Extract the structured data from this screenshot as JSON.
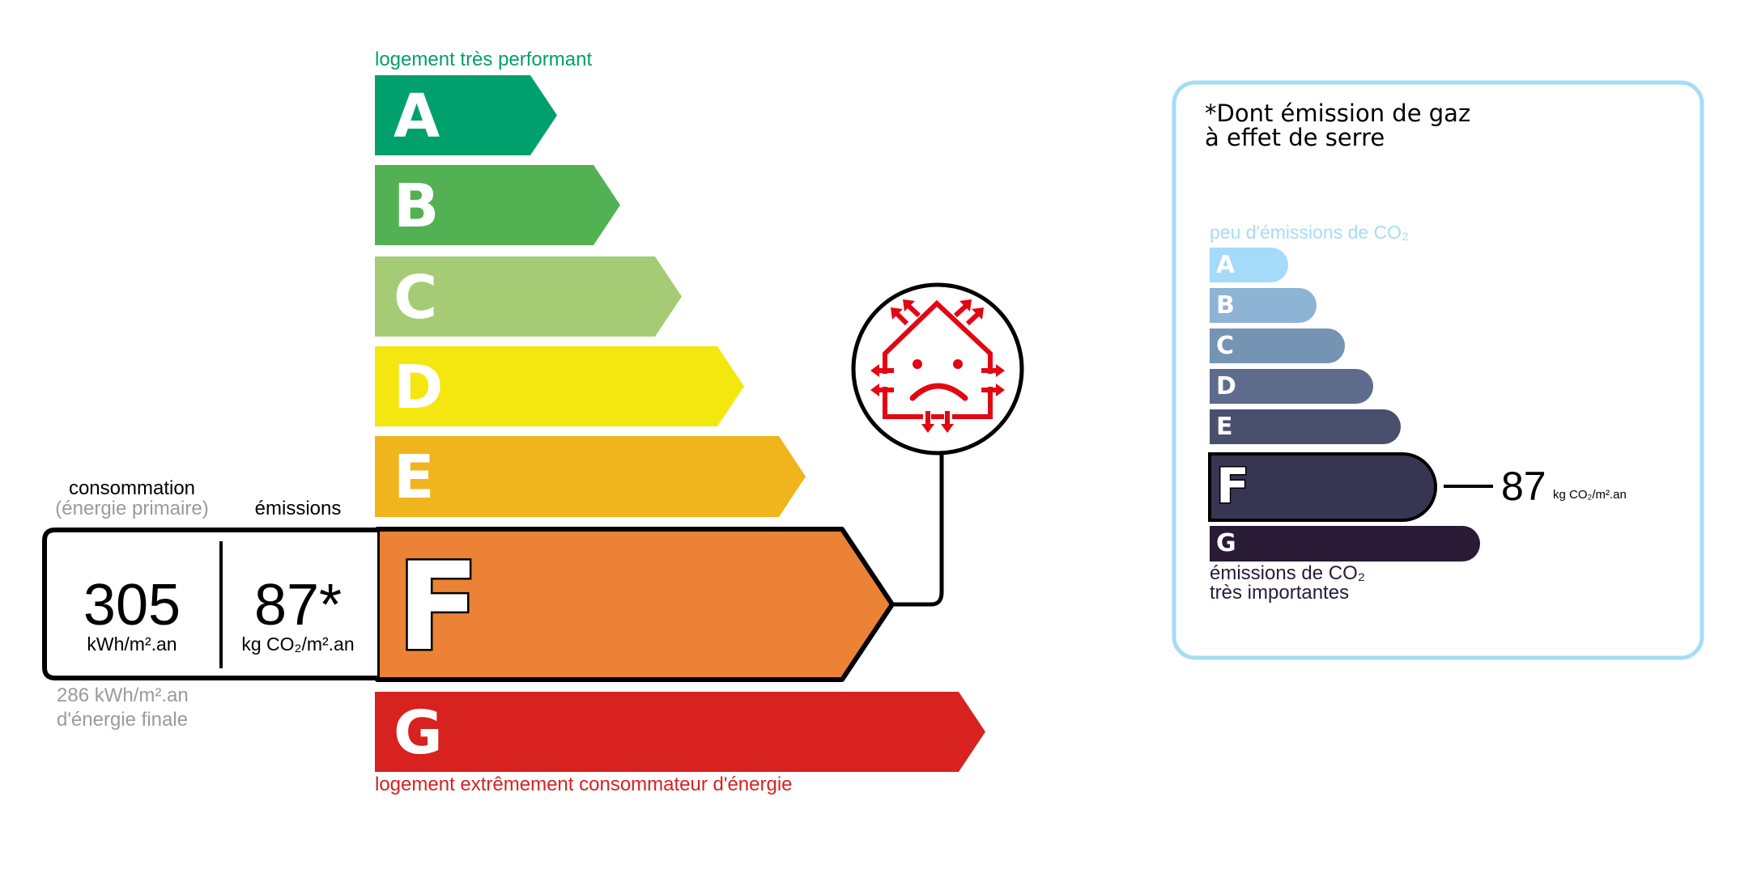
{
  "energy_scale": {
    "top_label": "logement très performant",
    "bottom_label": "logement extrêmement consommateur d'énergie",
    "top_color": "#00a06d",
    "bottom_color": "#d7221f",
    "classes": [
      {
        "letter": "A",
        "color": "#00a06d"
      },
      {
        "letter": "B",
        "color": "#52b153"
      },
      {
        "letter": "C",
        "color": "#a5cc74"
      },
      {
        "letter": "D",
        "color": "#f4e70f"
      },
      {
        "letter": "E",
        "color": "#f0b41c"
      },
      {
        "letter": "F",
        "color": "#eb8235"
      },
      {
        "letter": "G",
        "color": "#d7221f"
      }
    ],
    "current_class": "F",
    "icon": "sad-house-heat-loss-icon"
  },
  "readout": {
    "consumption_label": "consommation",
    "consumption_sublabel": "(énergie primaire)",
    "emissions_label": "émissions",
    "consumption_value": "305",
    "consumption_unit": "kWh/m².an",
    "emissions_value": "87*",
    "emissions_unit": "kg CO₂/m².an",
    "final_energy_value": "286 kWh/m².an",
    "final_energy_label": "d'énergie finale"
  },
  "ges_panel": {
    "title_line1": "*Dont émission de gaz",
    "title_line2": "à effet de serre",
    "top_label": "peu d'émissions de CO₂",
    "bottom_label_line1": "émissions de CO₂",
    "bottom_label_line2": "très importantes",
    "border_color": "#a6dcf4",
    "classes": [
      {
        "letter": "A",
        "color": "#a4dbf8"
      },
      {
        "letter": "B",
        "color": "#8db3d5"
      },
      {
        "letter": "C",
        "color": "#7594b4"
      },
      {
        "letter": "D",
        "color": "#5d6b8d"
      },
      {
        "letter": "E",
        "color": "#4b4f6e"
      },
      {
        "letter": "F",
        "color": "#383552"
      },
      {
        "letter": "G",
        "color": "#291a36"
      }
    ],
    "current_class": "F",
    "value": "87",
    "unit": "kg CO₂/m².an"
  }
}
